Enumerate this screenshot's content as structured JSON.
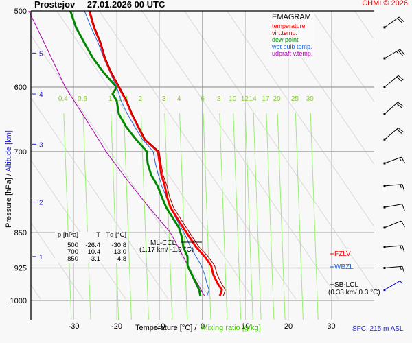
{
  "header": {
    "station": "Prostejov",
    "datetime": "27.01.2026 00 UTC",
    "credit": "CHMI © 2026"
  },
  "legend": {
    "title": "EMAGRAM",
    "items": [
      {
        "label": "temperature",
        "color": "#ff0000"
      },
      {
        "label": "virt.temp.",
        "color": "#990000"
      },
      {
        "label": "dew point",
        "color": "#008800"
      },
      {
        "label": "wet bulb temp.",
        "color": "#2266dd"
      },
      {
        "label": "udpraft v.temp.",
        "color": "#aa00aa"
      }
    ]
  },
  "summary_table": {
    "headers": [
      "p [hPa]",
      "T",
      "Td [°C]"
    ],
    "rows": [
      [
        "500",
        "-26.4",
        "-30.8"
      ],
      [
        "700",
        "-10.4",
        "-13.0"
      ],
      [
        "850",
        "-3.1",
        "-4.8"
      ]
    ]
  },
  "annotations": {
    "ml_ccl": {
      "label": "ML-CCL",
      "detail": "(1.17 km/ -1.9 °C)"
    },
    "fzlv": {
      "label": "FZLV",
      "color": "#ff0000"
    },
    "wbzl": {
      "label": "WBZL",
      "color": "#2266dd"
    },
    "sb_lcl": {
      "label": "SB-LCL",
      "detail": "(0.33 km/ 0.3 °C)"
    }
  },
  "footer": {
    "sfc": "SFC: 215 m ASL",
    "xlabel_temp": "Temperature [°C]  /",
    "xlabel_mix": "Mixing ratio [g/kg]",
    "ylabel_pressure": "Pressure [hPa]  /",
    "ylabel_alt": "Altitude [km]"
  },
  "chart_data": {
    "type": "line",
    "title": "EMAGRAM Prostejov 27.01.2026 00 UTC",
    "xlabel": "Temperature [°C] / Mixing ratio [g/kg]",
    "ylabel": "Pressure [hPa] / Altitude [km]",
    "xlim": [
      -40,
      40
    ],
    "ylim": [
      1000,
      500
    ],
    "x_ticks": [
      "-30",
      "-20",
      "-10",
      "0",
      "10",
      "20",
      "30"
    ],
    "x_tick_values": [
      -30,
      -20,
      -10,
      0,
      10,
      20,
      30
    ],
    "pressure_ticks": [
      "500",
      "600",
      "700",
      "850",
      "925",
      "1000"
    ],
    "pressure_tick_values": [
      500,
      600,
      700,
      850,
      925,
      1000
    ],
    "altitude_ticks": [
      "5",
      "4",
      "3",
      "2",
      "1"
    ],
    "altitude_tick_pressures": [
      553,
      610,
      688,
      790,
      900
    ],
    "mixing_ratio_labels": [
      "0.4",
      "0.6",
      "1",
      "1.4",
      "2",
      "3",
      "4",
      "6",
      "8",
      "10",
      "12",
      "14",
      "17",
      "20",
      "25",
      "30"
    ],
    "mixing_ratio_label_temps": [
      -32.5,
      -28,
      -21.5,
      -18.5,
      -14.5,
      -9,
      -5.5,
      0,
      3.8,
      7,
      9.8,
      11.7,
      14.7,
      17.3,
      21.5,
      25
    ],
    "grid": true,
    "legend_position": "top-right",
    "series": [
      {
        "name": "temperature",
        "color": "#ff0000",
        "p": [
          500,
          520,
          540,
          560,
          580,
          600,
          620,
          640,
          660,
          680,
          700,
          720,
          740,
          760,
          780,
          800,
          820,
          840,
          860,
          880,
          900,
          920,
          940,
          960,
          975,
          990
        ],
        "t": [
          -26.4,
          -25.3,
          -23.8,
          -22.8,
          -21.3,
          -19.5,
          -17.8,
          -16.5,
          -15.0,
          -13.5,
          -10.4,
          -10.0,
          -9.6,
          -8.8,
          -8.3,
          -7.5,
          -6.0,
          -4.5,
          -3.0,
          -1.5,
          0.5,
          2.0,
          2.5,
          3.5,
          4.5,
          4.0
        ]
      },
      {
        "name": "virt.temp.",
        "color": "#990000",
        "p": [
          500,
          520,
          540,
          560,
          580,
          600,
          620,
          640,
          660,
          680,
          700,
          720,
          740,
          760,
          780,
          800,
          820,
          840,
          860,
          880,
          900,
          920,
          940,
          960,
          975,
          990
        ],
        "t": [
          -26.2,
          -25.1,
          -23.6,
          -22.6,
          -21.1,
          -19.3,
          -17.6,
          -16.3,
          -14.8,
          -13.3,
          -10.1,
          -9.7,
          -9.2,
          -8.3,
          -7.7,
          -6.8,
          -5.3,
          -3.8,
          -2.3,
          -0.8,
          1.3,
          2.8,
          3.4,
          4.4,
          5.3,
          4.8
        ]
      },
      {
        "name": "dew point",
        "color": "#008800",
        "p": [
          500,
          520,
          540,
          560,
          580,
          600,
          610,
          620,
          640,
          660,
          680,
          700,
          720,
          740,
          760,
          780,
          800,
          820,
          840,
          860,
          880,
          900,
          920,
          940,
          960,
          975,
          990
        ],
        "t": [
          -30.8,
          -29.5,
          -27.5,
          -25.5,
          -23.0,
          -20.0,
          -21.0,
          -20.0,
          -19.5,
          -17.8,
          -15.5,
          -13.0,
          -12.8,
          -12.0,
          -10.5,
          -9.5,
          -8.5,
          -7.0,
          -5.5,
          -4.8,
          -4.5,
          -3.5,
          -3.5,
          -2.5,
          -1.5,
          -0.8,
          -0.5
        ]
      },
      {
        "name": "wet bulb temp.",
        "color": "#2266dd",
        "p": [
          500,
          520,
          540,
          560,
          580,
          600,
          620,
          640,
          660,
          680,
          700,
          720,
          740,
          760,
          780,
          800,
          820,
          840,
          860,
          880,
          900,
          920,
          940,
          960,
          975,
          990
        ],
        "t": [
          -27.5,
          -26.0,
          -24.3,
          -23.0,
          -21.5,
          -20.0,
          -19.0,
          -17.5,
          -15.8,
          -14.0,
          -11.5,
          -11.0,
          -10.3,
          -9.5,
          -8.5,
          -7.5,
          -6.3,
          -5.0,
          -3.8,
          -2.8,
          -1.5,
          -0.3,
          0.5,
          1.0,
          1.5,
          1.0
        ]
      },
      {
        "name": "udpraft v.temp.",
        "color": "#aa00aa",
        "p": [
          500,
          550,
          600,
          650,
          700,
          750,
          800,
          850,
          900,
          950,
          990
        ],
        "t": [
          -40.5,
          -36.0,
          -32.0,
          -27.0,
          -22.5,
          -17.5,
          -12.5,
          -7.5,
          -4.5,
          -1.8,
          0.5
        ]
      }
    ],
    "wind_barbs": {
      "p": [
        520,
        560,
        600,
        640,
        680,
        720,
        760,
        800,
        840,
        880,
        925,
        975
      ],
      "direction_deg": [
        235,
        240,
        230,
        228,
        230,
        250,
        265,
        260,
        248,
        265,
        265,
        240
      ],
      "speed_kt": [
        20,
        25,
        20,
        20,
        20,
        15,
        15,
        10,
        10,
        15,
        15,
        5
      ]
    }
  }
}
